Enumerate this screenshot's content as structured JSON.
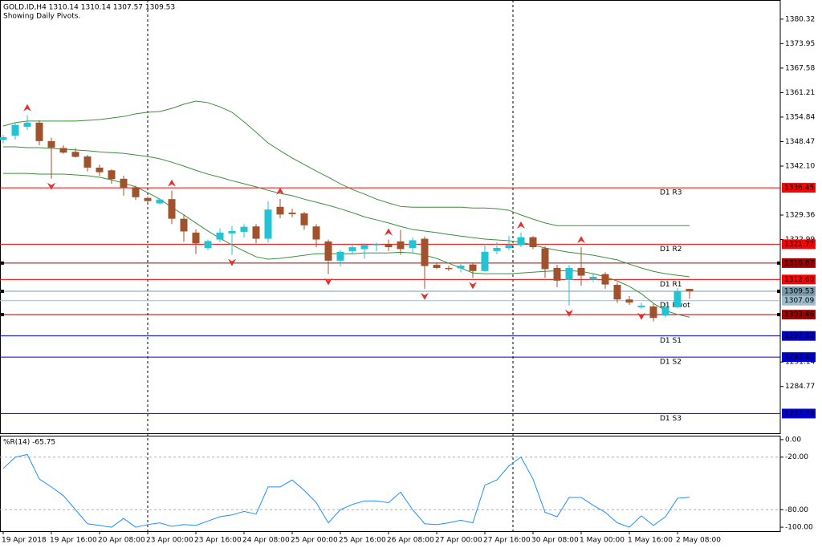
{
  "header": {
    "symbol_line": "GOLD.ID,H4  1310.14 1310.14 1307.57 1309.53",
    "subtitle": "Showing Daily Pivots."
  },
  "chart_data": [
    {
      "type": "candlestick",
      "categories": [
        "19 Apr 2018",
        null,
        null,
        null,
        "19 Apr 16:00",
        null,
        null,
        null,
        "20 Apr 08:00",
        null,
        null,
        null,
        "23 Apr 00:00",
        null,
        null,
        null,
        "23 Apr 16:00",
        null,
        null,
        null,
        "24 Apr 08:00",
        null,
        null,
        null,
        "25 Apr 00:00",
        null,
        null,
        null,
        "25 Apr 16:00",
        null,
        null,
        null,
        "26 Apr 08:00",
        null,
        null,
        null,
        "27 Apr 00:00",
        null,
        null,
        null,
        "27 Apr 16:00",
        null,
        null,
        null,
        "30 Apr 08:00",
        null,
        null,
        null,
        "1 May 00:00",
        null,
        null,
        null,
        "1 May 16:00",
        null,
        null,
        null,
        "2 May 08:00",
        null
      ],
      "open": [
        1348.9,
        1350.0,
        1352.3,
        1353.4,
        1348.6,
        1346.8,
        1345.8,
        1344.6,
        1341.7,
        1341.0,
        1338.8,
        1336.6,
        1333.8,
        1332.4,
        1333.5,
        1328.4,
        1324.8,
        1320.8,
        1323.0,
        1324.6,
        1325.0,
        1326.4,
        1323.2,
        1331.5,
        1330.0,
        1329.8,
        1326.4,
        1322.5,
        1317.5,
        1320.0,
        1320.5,
        1321.5,
        1321.8,
        1322.5,
        1320.8,
        1323.2,
        1316.4,
        1315.6,
        1315.5,
        1316.5,
        1314.8,
        1320.0,
        1320.8,
        1321.5,
        1323.6,
        1320.7,
        1315.6,
        1312.5,
        1315.6,
        1312.6,
        1314.0,
        1311.2,
        1307.4,
        1305.4,
        1305.6,
        1303.2,
        1305.4,
        1310.14
      ],
      "high": [
        1350.2,
        1353.3,
        1355.3,
        1354.0,
        1349.5,
        1347.5,
        1346.8,
        1345.0,
        1342.5,
        1341.3,
        1339.6,
        1337.0,
        1334.2,
        1333.7,
        1335.7,
        1329.5,
        1325.6,
        1323.0,
        1325.9,
        1326.5,
        1327.0,
        1327.0,
        1333.0,
        1333.6,
        1331.0,
        1330.2,
        1327.0,
        1323.0,
        1320.3,
        1321.6,
        1322.0,
        1322.2,
        1323.0,
        1325.5,
        1323.5,
        1323.8,
        1316.8,
        1316.2,
        1316.6,
        1317.0,
        1321.8,
        1322.3,
        1324.0,
        1324.8,
        1323.9,
        1321.2,
        1316.4,
        1316.4,
        1321.0,
        1314.0,
        1314.5,
        1311.8,
        1308.3,
        1306.6,
        1306.2,
        1306.5,
        1310.4,
        1310.14
      ],
      "low": [
        1348.0,
        1349.0,
        1351.5,
        1347.5,
        1338.8,
        1345.3,
        1344.3,
        1340.7,
        1339.6,
        1337.5,
        1334.4,
        1333.3,
        1332.6,
        1332.1,
        1327.0,
        1322.4,
        1319.2,
        1320.2,
        1322.3,
        1319.0,
        1323.5,
        1322.0,
        1322.2,
        1328.5,
        1328.8,
        1325.5,
        1321.0,
        1314.0,
        1316.0,
        1319.0,
        1318.0,
        1320.0,
        1320.0,
        1319.0,
        1319.5,
        1310.2,
        1315.3,
        1314.8,
        1314.5,
        1313.0,
        1314.6,
        1319.2,
        1320.2,
        1321.0,
        1320.5,
        1313.0,
        1310.6,
        1305.8,
        1311.0,
        1312.0,
        1310.2,
        1306.5,
        1306.0,
        1305.0,
        1301.7,
        1302.8,
        1305.1,
        1307.57
      ],
      "close": [
        1349.6,
        1352.8,
        1353.4,
        1348.6,
        1346.9,
        1345.6,
        1344.5,
        1341.7,
        1340.5,
        1338.7,
        1336.4,
        1334.0,
        1333.0,
        1333.4,
        1328.4,
        1325.1,
        1322.0,
        1322.6,
        1324.8,
        1325.2,
        1326.3,
        1323.2,
        1330.8,
        1329.5,
        1329.6,
        1326.7,
        1323.0,
        1317.5,
        1319.8,
        1321.0,
        1321.6,
        1321.8,
        1321.0,
        1320.5,
        1322.8,
        1316.1,
        1315.6,
        1315.3,
        1316.2,
        1314.8,
        1319.8,
        1320.8,
        1321.6,
        1323.6,
        1321.0,
        1315.3,
        1312.3,
        1315.6,
        1313.6,
        1313.3,
        1311.3,
        1307.4,
        1306.6,
        1305.8,
        1302.6,
        1305.4,
        1309.6,
        1309.53
      ],
      "up_color": "#22c4d4",
      "down_color": "#a0522d",
      "bands": [
        {
          "color": "#3c8f3c",
          "values": [
            1352.5,
            1353.4,
            1353.8,
            1353.8,
            1353.8,
            1353.8,
            1353.8,
            1354.0,
            1354.2,
            1354.6,
            1355.0,
            1355.7,
            1356.1,
            1356.3,
            1357.1,
            1358.2,
            1359.0,
            1358.6,
            1357.5,
            1356.1,
            1353.6,
            1350.9,
            1348.1,
            1346.1,
            1344.2,
            1342.5,
            1340.8,
            1339.2,
            1337.5,
            1336.0,
            1334.8,
            1333.5,
            1332.5,
            1331.6,
            1331.4,
            1331.4,
            1331.4,
            1331.4,
            1331.4,
            1331.2,
            1331.2,
            1331.0,
            1330.6,
            1329.4,
            1328.3,
            1327.3,
            1326.6,
            1326.6,
            1326.6,
            1326.6,
            1326.6,
            1326.6,
            1326.6,
            1326.6,
            1326.6,
            1326.6,
            1326.6,
            1326.6
          ]
        },
        {
          "color": "#3c8f3c",
          "values": [
            1347.1,
            1347.1,
            1346.9,
            1346.9,
            1346.7,
            1346.5,
            1346.3,
            1346.1,
            1345.8,
            1345.6,
            1345.4,
            1345.0,
            1344.6,
            1344.0,
            1343.1,
            1342.1,
            1341.0,
            1340.0,
            1339.2,
            1338.3,
            1337.5,
            1336.7,
            1335.8,
            1335.0,
            1334.4,
            1333.5,
            1332.7,
            1331.9,
            1331.0,
            1330.0,
            1328.9,
            1328.1,
            1327.3,
            1326.4,
            1325.6,
            1325.2,
            1324.8,
            1324.3,
            1323.9,
            1323.5,
            1323.1,
            1322.9,
            1322.7,
            1322.3,
            1321.6,
            1320.8,
            1320.2,
            1319.7,
            1319.3,
            1318.9,
            1318.3,
            1317.7,
            1316.6,
            1315.6,
            1314.7,
            1314.1,
            1313.7,
            1313.3
          ]
        },
        {
          "color": "#3c8f3c",
          "values": [
            1340.2,
            1340.2,
            1340.2,
            1340.0,
            1340.0,
            1340.0,
            1339.8,
            1339.6,
            1339.2,
            1338.5,
            1337.7,
            1336.7,
            1335.2,
            1333.5,
            1331.4,
            1329.4,
            1327.3,
            1325.2,
            1323.3,
            1321.6,
            1320.0,
            1318.5,
            1317.9,
            1318.1,
            1318.5,
            1318.9,
            1319.3,
            1319.3,
            1319.3,
            1319.3,
            1319.5,
            1319.5,
            1319.5,
            1319.7,
            1319.5,
            1318.9,
            1318.1,
            1316.8,
            1315.6,
            1314.3,
            1314.1,
            1314.1,
            1314.1,
            1314.3,
            1314.5,
            1314.7,
            1314.9,
            1314.9,
            1314.7,
            1314.1,
            1313.3,
            1312.2,
            1310.8,
            1308.9,
            1306.4,
            1304.5,
            1303.5,
            1302.8
          ]
        }
      ],
      "fractals_up": [
        2,
        14,
        23,
        32,
        43,
        48
      ],
      "fractals_down": [
        4,
        19,
        27,
        35,
        39,
        47,
        53
      ],
      "fractal_color": "#e03030",
      "levels": [
        {
          "name": "D1 R3",
          "value": 1336.45,
          "color": "#ff0000"
        },
        {
          "name": "D1 R2",
          "value": 1321.77,
          "color": "#ff0000"
        },
        {
          "value": 1316.87,
          "color": "#a00000"
        },
        {
          "name": "D1 R1",
          "value": 1312.6,
          "value_label": "1312.60",
          "color": "#ff0000"
        },
        {
          "value": 1309.53,
          "color": "#7a9aa8"
        },
        {
          "name": "D1 Pivot",
          "value": 1307.09,
          "color": "#9fbccb"
        },
        {
          "value": 1303.46,
          "color": "#a00000"
        },
        {
          "name": "D1 S1",
          "value": 1297.92,
          "color": "#0000cd"
        },
        {
          "name": "D1 S2",
          "value": 1292.41,
          "color": "#0000cd"
        },
        {
          "name": "D1 S3",
          "value": 1277.73,
          "color": "#0000cd"
        }
      ],
      "ylim": [
        1272.6,
        1385.3
      ],
      "yticks": [
        1380.32,
        1373.95,
        1367.58,
        1361.21,
        1354.84,
        1348.47,
        {
          "value": 1342.1,
          "label": "1342.10"
        },
        1329.36,
        1322.99,
        1291.14,
        1284.77
      ]
    },
    {
      "type": "line",
      "title": "%R(14) -65.75",
      "color": "#1e90ff",
      "values": [
        -33,
        -20,
        -17,
        -45,
        -54,
        -64,
        -80,
        -96,
        -98,
        -100,
        -90,
        -100,
        -97,
        -95,
        -99,
        -97,
        -98,
        -93,
        -88,
        -86,
        -82,
        -85,
        -54,
        -54,
        -46,
        -58,
        -72,
        -95,
        -80,
        -74,
        -70,
        -70,
        -72,
        -60,
        -80,
        -96,
        -97,
        -95,
        -92,
        -95,
        -52,
        -46,
        -30,
        -20,
        -45,
        -83,
        -88,
        -66,
        -66,
        -75,
        -83,
        -95,
        -100,
        -87,
        -98,
        -88,
        -67,
        -65.75
      ],
      "ylim": [
        -104.5,
        4.5
      ],
      "yticks": [
        {
          "value": 0,
          "label": "0.00"
        },
        {
          "value": -20,
          "label": "-20.00"
        },
        {
          "value": -80,
          "label": "-80.00"
        },
        {
          "value": -100,
          "label": "-100.00"
        }
      ],
      "grid_levels": [
        -20,
        -80
      ]
    }
  ]
}
